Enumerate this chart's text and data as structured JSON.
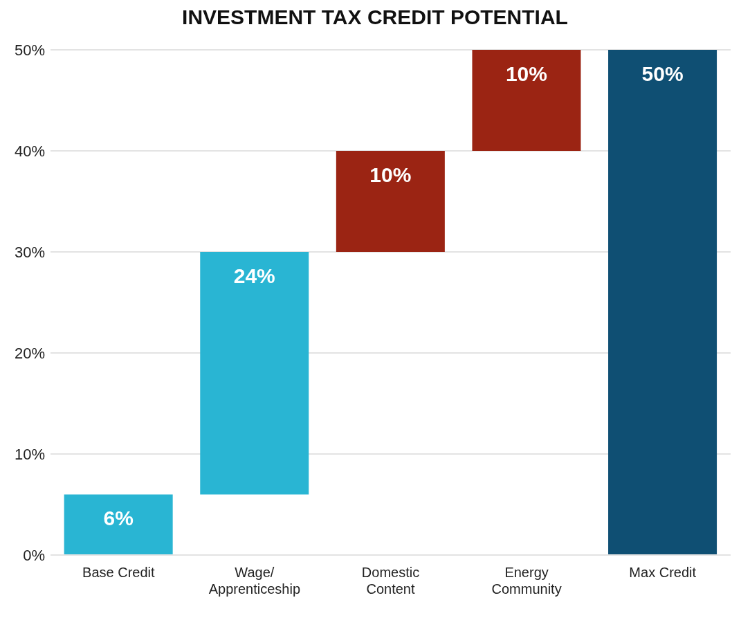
{
  "chart_data": {
    "type": "bar",
    "title": "INVESTMENT TAX CREDIT POTENTIAL",
    "categories": [
      "Base Credit",
      "Wage/\nApprenticeship",
      "Domestic\nContent",
      "Energy\nCommunity",
      "Max Credit"
    ],
    "values": [
      6,
      24,
      10,
      10,
      50
    ],
    "base": [
      0,
      6,
      30,
      40,
      0
    ],
    "colors": [
      "#29b5d3",
      "#29b5d3",
      "#9b2413",
      "#9b2413",
      "#0f4f73"
    ],
    "value_labels": [
      "6%",
      "24%",
      "10%",
      "10%",
      "50%"
    ],
    "ylim": [
      0,
      50
    ],
    "yticks": [
      {
        "value": 0,
        "label": "0%"
      },
      {
        "value": 10,
        "label": "10%"
      },
      {
        "value": 20,
        "label": "20%"
      },
      {
        "value": 30,
        "label": "30%"
      },
      {
        "value": 40,
        "label": "40%"
      },
      {
        "value": 50,
        "label": "50%"
      }
    ],
    "grid": "y"
  }
}
